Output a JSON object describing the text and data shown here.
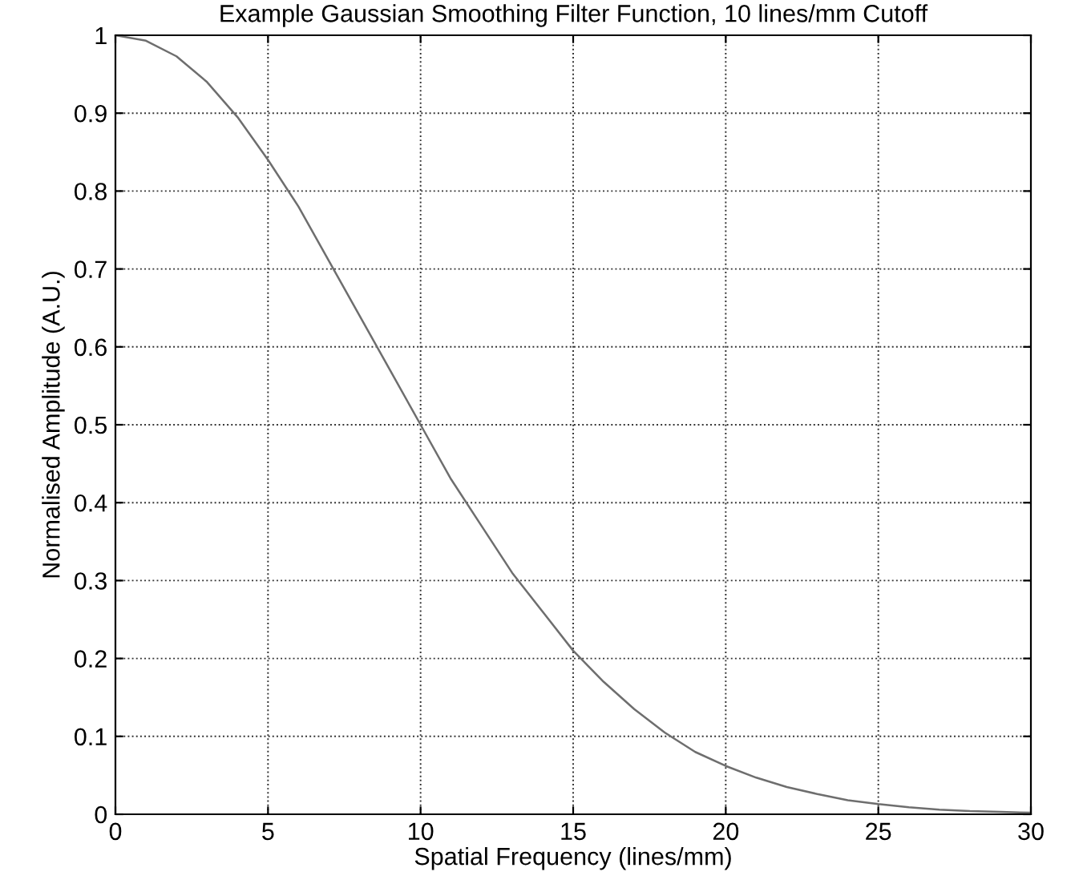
{
  "chart_data": {
    "type": "line",
    "title": "Example Gaussian Smoothing Filter Function, 10 lines/mm Cutoff",
    "xlabel": "Spatial Frequency (lines/mm)",
    "ylabel": "Normalised Amplitude (A.U.)",
    "x": [
      0,
      1,
      2,
      3,
      4,
      5,
      6,
      7,
      8,
      9,
      10,
      11,
      12,
      13,
      14,
      15,
      16,
      17,
      18,
      19,
      20,
      21,
      22,
      23,
      24,
      25,
      26,
      27,
      28,
      29,
      30
    ],
    "series": [
      {
        "color": "#6e6e6e",
        "values": [
          1,
          0.993,
          0.973,
          0.94,
          0.895,
          0.84,
          0.78,
          0.71,
          0.64,
          0.57,
          0.5,
          0.43,
          0.37,
          0.31,
          0.26,
          0.21,
          0.17,
          0.135,
          0.105,
          0.08,
          0.062,
          0.047,
          0.035,
          0.026,
          0.018,
          0.013,
          0.009,
          0.006,
          0.004,
          0.003,
          0.002
        ]
      }
    ],
    "xlim": [
      0,
      30
    ],
    "ylim": [
      0,
      1
    ],
    "xticks": [
      0,
      5,
      10,
      15,
      20,
      25,
      30
    ],
    "yticks": [
      0,
      0.1,
      0.2,
      0.3,
      0.4,
      0.5,
      0.6,
      0.7,
      0.8,
      0.9,
      1
    ],
    "grid": true,
    "line_style": "solid",
    "marker": "none"
  }
}
